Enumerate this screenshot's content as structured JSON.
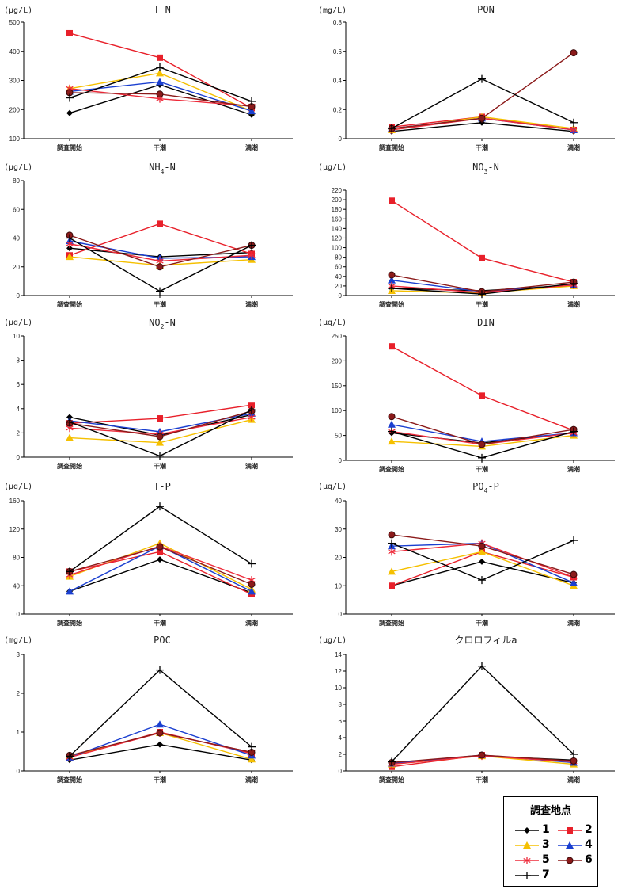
{
  "chart_data": [
    {
      "type": "line",
      "title": "T-N",
      "unit": "(μg/L)",
      "categories": [
        "調査開始",
        "干潮",
        "満潮"
      ],
      "ylim": [
        100,
        500
      ],
      "yticks": [
        100,
        200,
        300,
        400,
        500
      ],
      "series": [
        {
          "name": "1",
          "values": [
            188,
            285,
            182
          ]
        },
        {
          "name": "2",
          "values": [
            462,
            378,
            205
          ]
        },
        {
          "name": "3",
          "values": [
            272,
            325,
            195
          ]
        },
        {
          "name": "4",
          "values": [
            262,
            295,
            195
          ]
        },
        {
          "name": "5",
          "values": [
            272,
            237,
            212
          ]
        },
        {
          "name": "6",
          "values": [
            258,
            253,
            210
          ]
        },
        {
          "name": "7",
          "values": [
            240,
            345,
            228
          ]
        }
      ]
    },
    {
      "type": "line",
      "title": "PON",
      "unit": "(mg/L)",
      "categories": [
        "調査開始",
        "干潮",
        "満潮"
      ],
      "ylim": [
        0,
        0.8
      ],
      "yticks": [
        0,
        0.2,
        0.4,
        0.6,
        0.8
      ],
      "series": [
        {
          "name": "1",
          "values": [
            0.05,
            0.11,
            0.05
          ]
        },
        {
          "name": "2",
          "values": [
            0.08,
            0.15,
            0.06
          ]
        },
        {
          "name": "3",
          "values": [
            0.06,
            0.15,
            0.07
          ]
        },
        {
          "name": "4",
          "values": [
            0.07,
            0.14,
            0.06
          ]
        },
        {
          "name": "5",
          "values": [
            0.06,
            0.14,
            0.06
          ]
        },
        {
          "name": "6",
          "values": [
            0.07,
            0.14,
            0.59
          ]
        },
        {
          "name": "7",
          "values": [
            0.07,
            0.41,
            0.11
          ]
        }
      ]
    },
    {
      "type": "line",
      "title": "NH4-N",
      "title_main": "NH",
      "title_sub": "4",
      "title_tail": "-N",
      "unit": "(μg/L)",
      "categories": [
        "調査開始",
        "干潮",
        "満潮"
      ],
      "ylim": [
        0,
        80
      ],
      "yticks": [
        0,
        20,
        40,
        60,
        80
      ],
      "series": [
        {
          "name": "1",
          "values": [
            33,
            27,
            30
          ]
        },
        {
          "name": "2",
          "values": [
            28,
            50,
            29
          ]
        },
        {
          "name": "3",
          "values": [
            27,
            21,
            25
          ]
        },
        {
          "name": "4",
          "values": [
            38,
            26,
            27
          ]
        },
        {
          "name": "5",
          "values": [
            36,
            24,
            28
          ]
        },
        {
          "name": "6",
          "values": [
            42,
            20,
            35
          ]
        },
        {
          "name": "7",
          "values": [
            40,
            3,
            35
          ]
        }
      ]
    },
    {
      "type": "line",
      "title": "NO3-N",
      "title_main": "NO",
      "title_sub": "3",
      "title_tail": "-N",
      "unit": "(μg/L)",
      "categories": [
        "調査開始",
        "干潮",
        "満潮"
      ],
      "ylim": [
        0,
        220
      ],
      "yticks": [
        0,
        20,
        40,
        60,
        80,
        100,
        120,
        140,
        160,
        180,
        200,
        220
      ],
      "series": [
        {
          "name": "1",
          "values": [
            15,
            10,
            22
          ]
        },
        {
          "name": "2",
          "values": [
            198,
            78,
            28
          ]
        },
        {
          "name": "3",
          "values": [
            10,
            5,
            20
          ]
        },
        {
          "name": "4",
          "values": [
            32,
            8,
            22
          ]
        },
        {
          "name": "5",
          "values": [
            20,
            6,
            22
          ]
        },
        {
          "name": "6",
          "values": [
            43,
            8,
            28
          ]
        },
        {
          "name": "7",
          "values": [
            15,
            3,
            25
          ]
        }
      ]
    },
    {
      "type": "line",
      "title": "NO2-N",
      "title_main": "NO",
      "title_sub": "2",
      "title_tail": "-N",
      "unit": "(μg/L)",
      "categories": [
        "調査開始",
        "干潮",
        "満潮"
      ],
      "ylim": [
        0,
        10
      ],
      "yticks": [
        0,
        2,
        4,
        6,
        8,
        10
      ],
      "series": [
        {
          "name": "1",
          "values": [
            3.3,
            1.8,
            3.5
          ]
        },
        {
          "name": "2",
          "values": [
            2.8,
            3.2,
            4.3
          ]
        },
        {
          "name": "3",
          "values": [
            1.6,
            1.2,
            3.1
          ]
        },
        {
          "name": "4",
          "values": [
            3.0,
            2.1,
            3.6
          ]
        },
        {
          "name": "5",
          "values": [
            2.4,
            1.9,
            3.3
          ]
        },
        {
          "name": "6",
          "values": [
            2.8,
            1.7,
            3.8
          ]
        },
        {
          "name": "7",
          "values": [
            2.9,
            0.1,
            3.9
          ]
        }
      ]
    },
    {
      "type": "line",
      "title": "DIN",
      "unit": "(μg/L)",
      "categories": [
        "調査開始",
        "干潮",
        "満潮"
      ],
      "ylim": [
        0,
        250
      ],
      "yticks": [
        0,
        50,
        100,
        150,
        200,
        250
      ],
      "series": [
        {
          "name": "1",
          "values": [
            55,
            35,
            55
          ]
        },
        {
          "name": "2",
          "values": [
            229,
            130,
            60
          ]
        },
        {
          "name": "3",
          "values": [
            38,
            28,
            50
          ]
        },
        {
          "name": "4",
          "values": [
            72,
            38,
            55
          ]
        },
        {
          "name": "5",
          "values": [
            58,
            32,
            55
          ]
        },
        {
          "name": "6",
          "values": [
            88,
            32,
            62
          ]
        },
        {
          "name": "7",
          "values": [
            58,
            5,
            58
          ]
        }
      ]
    },
    {
      "type": "line",
      "title": "T-P",
      "unit": "(μg/L)",
      "categories": [
        "調査開始",
        "干潮",
        "満潮"
      ],
      "ylim": [
        0,
        160
      ],
      "yticks": [
        0,
        40,
        80,
        120,
        160
      ],
      "series": [
        {
          "name": "1",
          "values": [
            32,
            77,
            30
          ]
        },
        {
          "name": "2",
          "values": [
            60,
            88,
            28
          ]
        },
        {
          "name": "3",
          "values": [
            53,
            100,
            35
          ]
        },
        {
          "name": "4",
          "values": [
            32,
            96,
            32
          ]
        },
        {
          "name": "5",
          "values": [
            55,
            96,
            48
          ]
        },
        {
          "name": "6",
          "values": [
            60,
            95,
            42
          ]
        },
        {
          "name": "7",
          "values": [
            60,
            152,
            71
          ]
        }
      ]
    },
    {
      "type": "line",
      "title": "PO4-P",
      "title_main": "PO",
      "title_sub": "4",
      "title_tail": "-P",
      "unit": "(μg/L)",
      "categories": [
        "調査開始",
        "干潮",
        "満潮"
      ],
      "ylim": [
        0,
        40
      ],
      "yticks": [
        0,
        10,
        20,
        30,
        40
      ],
      "series": [
        {
          "name": "1",
          "values": [
            10,
            18.5,
            11
          ]
        },
        {
          "name": "2",
          "values": [
            10,
            22,
            13
          ]
        },
        {
          "name": "3",
          "values": [
            15,
            22,
            10
          ]
        },
        {
          "name": "4",
          "values": [
            24,
            25,
            11
          ]
        },
        {
          "name": "5",
          "values": [
            22,
            25,
            13
          ]
        },
        {
          "name": "6",
          "values": [
            28,
            24,
            14
          ]
        },
        {
          "name": "7",
          "values": [
            25,
            12,
            26
          ]
        }
      ]
    },
    {
      "type": "line",
      "title": "POC",
      "unit": "(mg/L)",
      "categories": [
        "調査開始",
        "干潮",
        "満潮"
      ],
      "ylim": [
        0,
        3
      ],
      "yticks": [
        0,
        1,
        2,
        3
      ],
      "series": [
        {
          "name": "1",
          "values": [
            0.28,
            0.68,
            0.28
          ]
        },
        {
          "name": "2",
          "values": [
            0.35,
            1.0,
            0.45
          ]
        },
        {
          "name": "3",
          "values": [
            0.38,
            0.98,
            0.3
          ]
        },
        {
          "name": "4",
          "values": [
            0.35,
            1.2,
            0.4
          ]
        },
        {
          "name": "5",
          "values": [
            0.35,
            0.98,
            0.48
          ]
        },
        {
          "name": "6",
          "values": [
            0.4,
            0.98,
            0.48
          ]
        },
        {
          "name": "7",
          "values": [
            0.38,
            2.6,
            0.62
          ]
        }
      ]
    },
    {
      "type": "line",
      "title": "クロロフィルa",
      "unit": "(μg/L)",
      "categories": [
        "調査開始",
        "干潮",
        "満潮"
      ],
      "ylim": [
        0,
        14
      ],
      "yticks": [
        0,
        2,
        4,
        6,
        8,
        10,
        12,
        14
      ],
      "series": [
        {
          "name": "1",
          "values": [
            1.0,
            1.8,
            1.3
          ]
        },
        {
          "name": "2",
          "values": [
            0.5,
            1.9,
            1.1
          ]
        },
        {
          "name": "3",
          "values": [
            0.8,
            1.8,
            0.8
          ]
        },
        {
          "name": "4",
          "values": [
            0.9,
            1.9,
            1.0
          ]
        },
        {
          "name": "5",
          "values": [
            0.8,
            1.8,
            1.1
          ]
        },
        {
          "name": "6",
          "values": [
            1.0,
            1.9,
            1.2
          ]
        },
        {
          "name": "7",
          "values": [
            1.1,
            12.6,
            2.0
          ]
        }
      ]
    }
  ],
  "legend": {
    "title": "調査地点",
    "items": [
      {
        "name": "1",
        "color": "#000000",
        "marker": "diamond"
      },
      {
        "name": "2",
        "color": "#e8202a",
        "marker": "square"
      },
      {
        "name": "3",
        "color": "#f5c000",
        "marker": "triangle"
      },
      {
        "name": "4",
        "color": "#1a3fd0",
        "marker": "triangle"
      },
      {
        "name": "5",
        "color": "#ee2a3a",
        "marker": "asterisk"
      },
      {
        "name": "6",
        "color": "#8b1a1a",
        "marker": "circle"
      },
      {
        "name": "7",
        "color": "#000000",
        "marker": "plus"
      }
    ]
  }
}
